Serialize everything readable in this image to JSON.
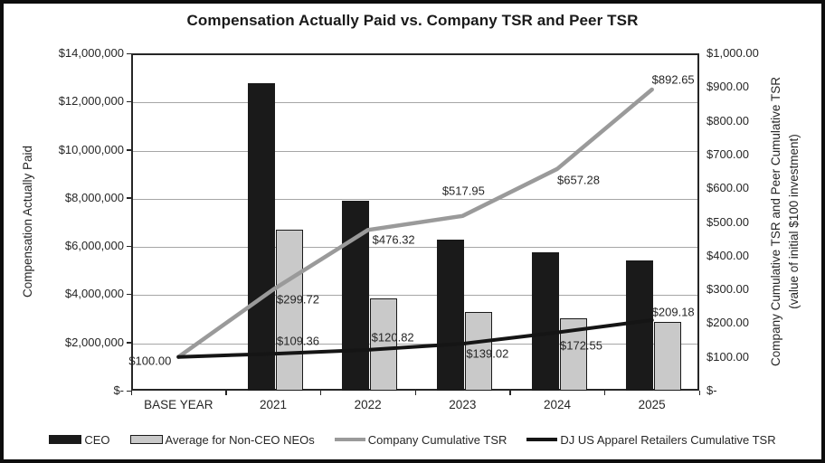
{
  "colors": {
    "ceo_bar": "#1a1a1a",
    "non_ceo_bar": "#c9c9c9",
    "non_ceo_bar_border": "#1a1a1a",
    "company_line": "#9a9a9a",
    "peer_line": "#151515",
    "gridline": "#a6a6a6",
    "text": "#262626",
    "figure_border": "#0d0d0d"
  },
  "chart_data": {
    "type": "combo-bar-line",
    "title": "Compensation Actually Paid vs. Company TSR and Peer TSR",
    "categories": [
      "BASE YEAR",
      "2021",
      "2022",
      "2023",
      "2024",
      "2025"
    ],
    "bar_series": [
      {
        "name": "CEO",
        "axis": "left",
        "values": [
          null,
          12780000,
          7880000,
          6270000,
          5750000,
          5390000
        ]
      },
      {
        "name": "Average for Non-CEO NEOs",
        "axis": "left",
        "values": [
          null,
          6690000,
          3830000,
          3250000,
          2990000,
          2860000
        ]
      }
    ],
    "line_series": [
      {
        "name": "Company Cumulative TSR",
        "axis": "right",
        "values": [
          100.0,
          299.72,
          476.32,
          517.95,
          657.28,
          892.65
        ],
        "labels": [
          "$100.00",
          "$299.72",
          "$476.32",
          "$517.95",
          "$657.28",
          "$892.65"
        ]
      },
      {
        "name": "DJ US Apparel Retailers Cumulative TSR",
        "axis": "right",
        "values": [
          100.0,
          109.36,
          120.82,
          139.02,
          172.55,
          209.18
        ],
        "labels": [
          null,
          "$109.36",
          "$120.82",
          "$139.02",
          "$172.55",
          "$209.18"
        ]
      }
    ],
    "left_axis": {
      "label": "Compensation Actually Paid",
      "min": 0,
      "max": 14000000,
      "ticks": [
        "$14,000,000",
        "$12,000,000",
        "$10,000,000",
        "$8,000,000",
        "$6,000,000",
        "$4,000,000",
        "$2,000,000",
        "$-"
      ]
    },
    "right_axis": {
      "label_line1": "Company Cumulative TSR and Peer Cumulative TSR",
      "label_line2": "(value of initial $100 investment)",
      "min": 0,
      "max": 1000,
      "ticks": [
        "$1,000.00",
        "$900.00",
        "$800.00",
        "$700.00",
        "$600.00",
        "$500.00",
        "$400.00",
        "$300.00",
        "$200.00",
        "$100.00",
        "$-"
      ]
    },
    "grid": true,
    "legend_position": "bottom"
  }
}
